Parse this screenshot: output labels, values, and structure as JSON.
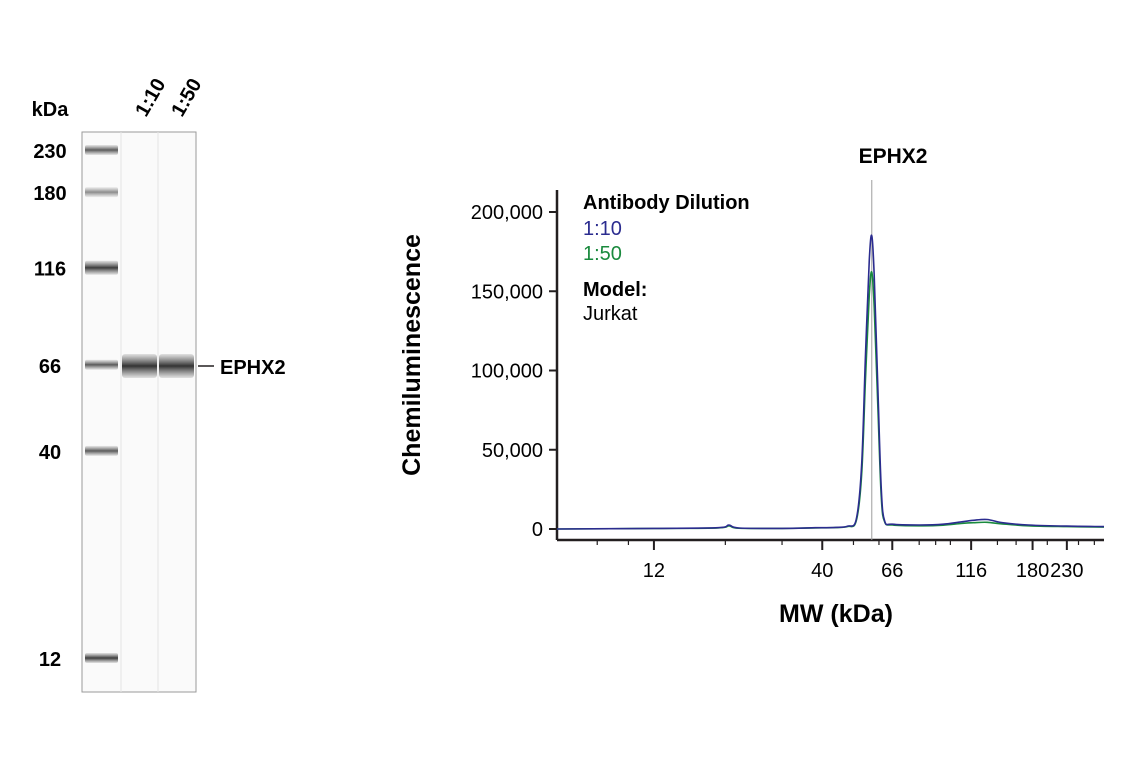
{
  "blot": {
    "kda_label": "kDa",
    "lanes": [
      "1:10",
      "1:50"
    ],
    "ladder_markers": [
      {
        "label": "230",
        "kda": 230
      },
      {
        "label": "180",
        "kda": 180
      },
      {
        "label": "116",
        "kda": 116
      },
      {
        "label": "66",
        "kda": 66
      },
      {
        "label": "40",
        "kda": 40
      },
      {
        "label": "12",
        "kda": 12
      }
    ],
    "band_label": "EPHX2",
    "band_kda": 57
  },
  "chart_data": {
    "type": "line",
    "title": "EPHX2",
    "xlabel": "MW (kDa)",
    "ylabel": "Chemiluminescence",
    "x_scale": "log",
    "x_ticks": [
      {
        "label": "12",
        "value": 12
      },
      {
        "label": "40",
        "value": 40
      },
      {
        "label": "66",
        "value": 66
      },
      {
        "label": "116",
        "value": 116
      },
      {
        "label": "180",
        "value": 180
      },
      {
        "label": "230",
        "value": 230
      }
    ],
    "y_ticks": [
      "0",
      "50,000",
      "100,000",
      "150,000",
      "200,000"
    ],
    "y_tick_values": [
      0,
      50000,
      100000,
      150000,
      200000
    ],
    "xlim": [
      6,
      300
    ],
    "ylim": [
      0,
      215000
    ],
    "peak_marker_kda": 57,
    "legend_title": "Antibody Dilution",
    "model_title": "Model:",
    "model_value": "Jurkat",
    "series": [
      {
        "name": "1:10",
        "color": "#2b2c8f",
        "points": [
          [
            6,
            0
          ],
          [
            12,
            400
          ],
          [
            19,
            800
          ],
          [
            20.5,
            2500
          ],
          [
            22,
            600
          ],
          [
            30,
            400
          ],
          [
            38,
            800
          ],
          [
            44,
            1000
          ],
          [
            48,
            1800
          ],
          [
            51,
            6000
          ],
          [
            53,
            40000
          ],
          [
            54.5,
            110000
          ],
          [
            56,
            170000
          ],
          [
            57,
            185000
          ],
          [
            58,
            160000
          ],
          [
            59.5,
            90000
          ],
          [
            61,
            25000
          ],
          [
            62.5,
            5000
          ],
          [
            66,
            3000
          ],
          [
            80,
            2500
          ],
          [
            95,
            3000
          ],
          [
            108,
            4500
          ],
          [
            118,
            5500
          ],
          [
            130,
            6000
          ],
          [
            145,
            4000
          ],
          [
            175,
            2500
          ],
          [
            230,
            1800
          ],
          [
            300,
            1500
          ]
        ]
      },
      {
        "name": "1:50",
        "color": "#1a8a3e",
        "points": [
          [
            6,
            0
          ],
          [
            12,
            300
          ],
          [
            19,
            700
          ],
          [
            20.5,
            2000
          ],
          [
            22,
            500
          ],
          [
            30,
            400
          ],
          [
            38,
            700
          ],
          [
            44,
            900
          ],
          [
            48,
            1600
          ],
          [
            51,
            5000
          ],
          [
            53,
            34000
          ],
          [
            54.5,
            95000
          ],
          [
            56,
            148000
          ],
          [
            57,
            162000
          ],
          [
            58,
            140000
          ],
          [
            59.5,
            78000
          ],
          [
            61,
            20000
          ],
          [
            62.5,
            4500
          ],
          [
            66,
            2500
          ],
          [
            80,
            2000
          ],
          [
            95,
            2400
          ],
          [
            108,
            3500
          ],
          [
            118,
            4000
          ],
          [
            130,
            4200
          ],
          [
            145,
            3200
          ],
          [
            175,
            2000
          ],
          [
            230,
            1500
          ],
          [
            300,
            1200
          ]
        ]
      }
    ]
  }
}
